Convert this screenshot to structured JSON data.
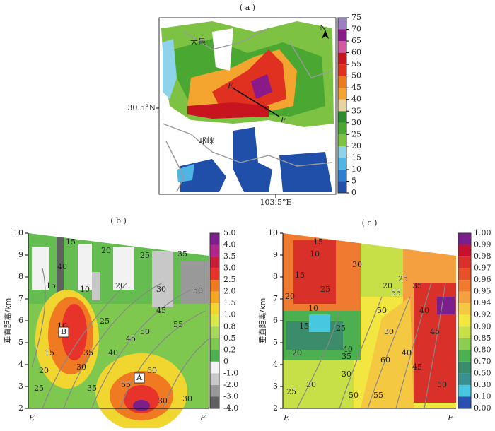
{
  "panels": [
    {
      "label": "( a )",
      "lat_label": "30.5°N",
      "lon_label": "103.5°E",
      "places": [
        "大邑",
        "邛崃"
      ],
      "section_points": [
        "E",
        "F"
      ],
      "north": "N",
      "colorbar": {
        "ticks": [
          0,
          5,
          10,
          15,
          20,
          25,
          30,
          35,
          40,
          45,
          50,
          55,
          60,
          65,
          70,
          75
        ],
        "colors": [
          "#1f4fa8",
          "#2f7fd0",
          "#4eb5e5",
          "#8fd3ea",
          "#7dc242",
          "#4aa832",
          "#2e8b2e",
          "#e8d4a0",
          "#f3a530",
          "#ee7a20",
          "#e03020",
          "#c8141e",
          "#d25aa0",
          "#8a1a8a",
          "#9b7fc0"
        ]
      }
    },
    {
      "label": "( b )",
      "y_title": "垂直距离/km",
      "ylim": [
        2,
        10
      ],
      "yticks": [
        2,
        3,
        4,
        5,
        6,
        7,
        8,
        9,
        10
      ],
      "x_ends": [
        "E",
        "F"
      ],
      "annotations": [
        "B",
        "A"
      ],
      "colorbar": {
        "labels": [
          "5.0",
          "4.0",
          "3.5",
          "3.0",
          "2.5",
          "2.0",
          "1.5",
          "1.0",
          "0.8",
          "0.5",
          "0.2",
          "0",
          "-1.0",
          "-2.0",
          "-3.0",
          "-4.0"
        ],
        "colors": [
          "#7b1f8c",
          "#b0268c",
          "#c81e3a",
          "#e8332a",
          "#f07a22",
          "#f5a623",
          "#f2d630",
          "#d8e84a",
          "#a6d85a",
          "#7ec850",
          "#4caf50",
          "#f2f2f2",
          "#c8c8c8",
          "#999999",
          "#606060"
        ]
      },
      "contours": [
        "15",
        "20",
        "25",
        "35",
        "40",
        "15",
        "10",
        "20",
        "30",
        "50",
        "45",
        "55",
        "10",
        "15",
        "20",
        "25",
        "30",
        "35",
        "40",
        "45",
        "55",
        "60",
        "30",
        "30",
        "25",
        "35",
        "50"
      ]
    },
    {
      "label": "( c )",
      "y_title": "垂直距离/km",
      "ylim": [
        2,
        10
      ],
      "yticks": [
        2,
        3,
        4,
        5,
        6,
        7,
        8,
        9,
        10
      ],
      "x_ends": [
        "E",
        "F"
      ],
      "colorbar": {
        "labels": [
          "1.00",
          "0.99",
          "0.98",
          "0.97",
          "0.96",
          "0.95",
          "0.94",
          "0.92",
          "0.90",
          "0.85",
          "0.80",
          "0.70",
          "0.50",
          "0.30",
          "0.10",
          "0.00"
        ],
        "colors": [
          "#7b1f8c",
          "#c8102e",
          "#d9302a",
          "#e8502a",
          "#f07a30",
          "#f5a040",
          "#f5c842",
          "#f2e640",
          "#c8e048",
          "#8ccc50",
          "#4caf50",
          "#3a8c6a",
          "#3a9090",
          "#48c8e0",
          "#2a50b0"
        ]
      },
      "contours": [
        "15",
        "10",
        "15",
        "20",
        "25",
        "30",
        "20",
        "10",
        "15",
        "20",
        "25",
        "30",
        "35",
        "40",
        "50",
        "55",
        "60",
        "30",
        "40",
        "45",
        "50",
        "55",
        "25",
        "35",
        "40",
        "45",
        "50",
        "30",
        "25"
      ]
    }
  ]
}
